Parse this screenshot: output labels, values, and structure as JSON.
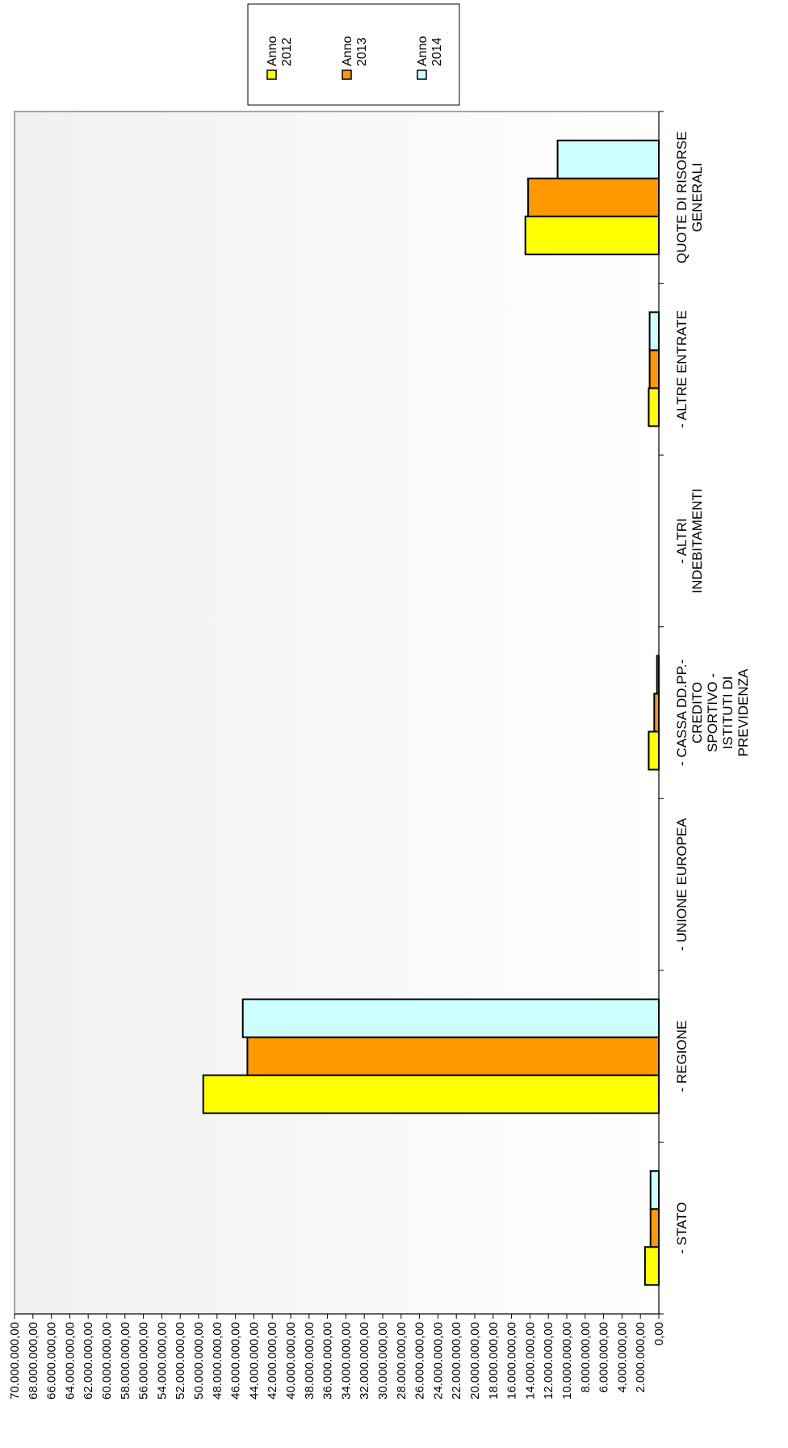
{
  "chart_data": {
    "type": "bar",
    "orientation": "horizontal-rotated",
    "title": "",
    "xlabel": "",
    "ylabel": "",
    "categories": [
      [
        "- STATO"
      ],
      [
        "- REGIONE"
      ],
      [
        "- UNIONE EUROPEA"
      ],
      [
        "- CASSA DD.PP.-",
        "CREDITO",
        "SPORTIVO -",
        "ISTITUTI DI",
        "PREVIDENZA"
      ],
      [
        "- ALTRI",
        "INDEBITAMENTI"
      ],
      [
        "- ALTRE ENTRATE"
      ],
      [
        "QUOTE DI RISORSE",
        "GENERALI"
      ]
    ],
    "series": [
      {
        "name": [
          "Anno",
          "2012"
        ],
        "color": "#ffff00",
        "values": [
          1500000,
          49500000,
          0,
          1100000,
          0,
          1100000,
          14500000
        ]
      },
      {
        "name": [
          "Anno",
          "2013"
        ],
        "color": "#ff9900",
        "values": [
          900000,
          44700000,
          0,
          500000,
          0,
          1000000,
          14200000
        ]
      },
      {
        "name": [
          "Anno",
          "2014"
        ],
        "color": "#ccffff",
        "values": [
          900000,
          45200000,
          0,
          200000,
          0,
          1000000,
          11000000
        ]
      }
    ],
    "ylim": [
      0,
      70000000
    ],
    "tick_step": 2000000,
    "tick_labels": [
      "0,00",
      "2.000.000,00",
      "4.000.000,00",
      "6.000.000,00",
      "8.000.000,00",
      "10.000.000,00",
      "12.000.000,00",
      "14.000.000,00",
      "16.000.000,00",
      "18.000.000,00",
      "20.000.000,00",
      "22.000.000,00",
      "24.000.000,00",
      "26.000.000,00",
      "28.000.000,00",
      "30.000.000,00",
      "32.000.000,00",
      "34.000.000,00",
      "36.000.000,00",
      "38.000.000,00",
      "40.000.000,00",
      "42.000.000,00",
      "44.000.000,00",
      "46.000.000,00",
      "48.000.000,00",
      "50.000.000,00",
      "52.000.000,00",
      "54.000.000,00",
      "56.000.000,00",
      "58.000.000,00",
      "60.000.000,00",
      "62.000.000,00",
      "64.000.000,00",
      "66.000.000,00",
      "68.000.000,00",
      "70.000.000,00"
    ],
    "grid": false,
    "legend_position": "top-right",
    "plot_background": "#f2f2f2"
  }
}
